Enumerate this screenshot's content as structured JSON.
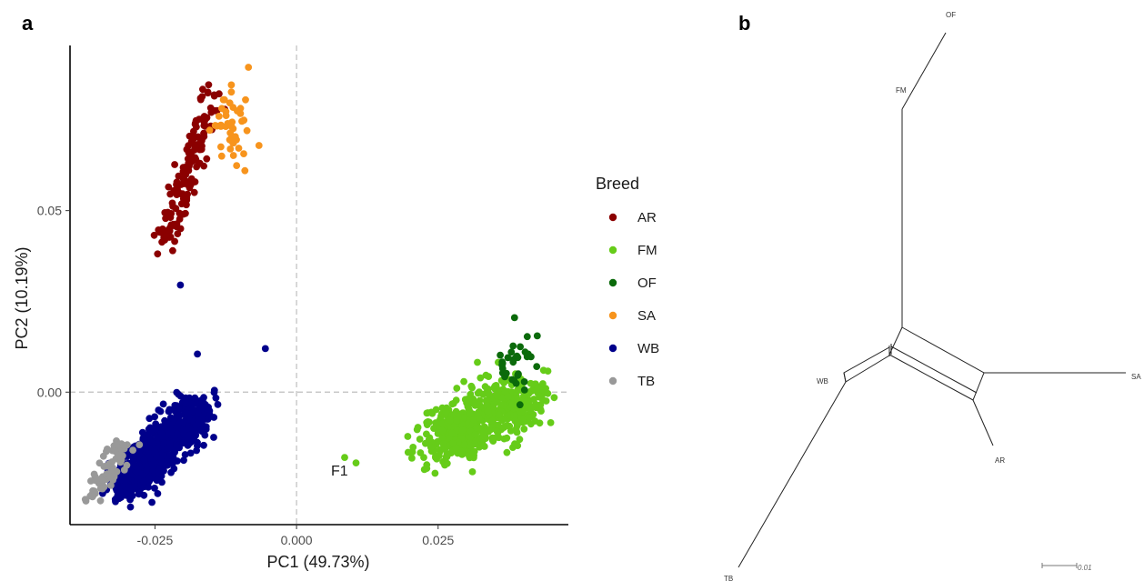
{
  "panels": {
    "a": "a",
    "b": "b"
  },
  "chart_data": [
    {
      "type": "scatter",
      "xlabel": "PC1 (49.73%)",
      "ylabel": "PC2 (10.19%)",
      "xlim": [
        -0.04,
        0.048
      ],
      "ylim": [
        -0.0365,
        0.0955
      ],
      "xticks": [
        -0.025,
        0.0,
        0.025
      ],
      "xtick_labels": [
        "-0.025",
        "0.000",
        "0.025"
      ],
      "yticks": [
        0.0,
        0.05
      ],
      "ytick_labels": [
        "0.00",
        "0.05"
      ],
      "reference_lines": {
        "x": 0.0,
        "y": 0.0,
        "style": "dashed",
        "color": "#bfbfbf"
      },
      "grid": false,
      "legend": {
        "title": "Breed",
        "placement": "right",
        "entries": [
          {
            "label": "AR",
            "color": "#8b0000"
          },
          {
            "label": "FM",
            "color": "#66cc19"
          },
          {
            "label": "OF",
            "color": "#0b6a0b"
          },
          {
            "label": "SA",
            "color": "#f7941d"
          },
          {
            "label": "WB",
            "color": "#00008b"
          },
          {
            "label": "TB",
            "color": "#999999"
          }
        ]
      },
      "annotations": [
        {
          "text": "F1",
          "x": 0.0072,
          "y": -0.0215
        }
      ],
      "series": [
        {
          "name": "AR",
          "color": "#8b0000",
          "clusters": [
            {
              "n": 150,
              "x_start": [
                -0.0235,
                0.04
              ],
              "x_end": [
                -0.0145,
                0.085
              ],
              "spread": 0.0012
            }
          ]
        },
        {
          "name": "SA",
          "color": "#f7941d",
          "clusters": [
            {
              "n": 45,
              "cx": -0.0115,
              "cy": 0.074,
              "sx": 0.0018,
              "sy": 0.006
            }
          ],
          "points": [
            [
              -0.0085,
              0.0895
            ]
          ]
        },
        {
          "name": "WB",
          "color": "#00008b",
          "clusters": [
            {
              "n": 700,
              "x_start": [
                -0.03,
                -0.026
              ],
              "x_end": [
                -0.0175,
                -0.004
              ],
              "spread": 0.0022
            }
          ],
          "points": [
            [
              -0.0205,
              0.0295
            ],
            [
              -0.0055,
              0.012
            ],
            [
              -0.0175,
              0.0105
            ],
            [
              -0.0145,
              0.0005
            ],
            [
              -0.027,
              -0.0245
            ]
          ]
        },
        {
          "name": "TB",
          "color": "#999999",
          "clusters": [
            {
              "n": 80,
              "x_start": [
                -0.0365,
                -0.0295
              ],
              "x_end": [
                -0.0305,
                -0.0145
              ],
              "spread": 0.0013
            }
          ]
        },
        {
          "name": "FM",
          "color": "#66cc19",
          "clusters": [
            {
              "n": 600,
              "x_start": [
                0.025,
                -0.014
              ],
              "x_end": [
                0.0405,
                -0.0015
              ],
              "spread": 0.0034
            }
          ],
          "points": [
            [
              0.0085,
              -0.018
            ],
            [
              0.0105,
              -0.0195
            ],
            [
              0.023,
              -0.021
            ],
            [
              0.0455,
              -0.0015
            ],
            [
              0.044,
              0.001
            ]
          ]
        },
        {
          "name": "OF",
          "color": "#0b6a0b",
          "clusters": [
            {
              "n": 30,
              "cx": 0.0385,
              "cy": 0.006,
              "sx": 0.0018,
              "sy": 0.0035
            }
          ],
          "points": [
            [
              0.0385,
              0.0205
            ],
            [
              0.0425,
              0.0155
            ],
            [
              0.0395,
              0.0125
            ]
          ]
        }
      ]
    },
    {
      "type": "network-tree",
      "taxa": [
        "OF",
        "FM",
        "SA",
        "WB",
        "AR",
        "TB"
      ],
      "scale_bar": {
        "label": "0.01"
      }
    }
  ]
}
